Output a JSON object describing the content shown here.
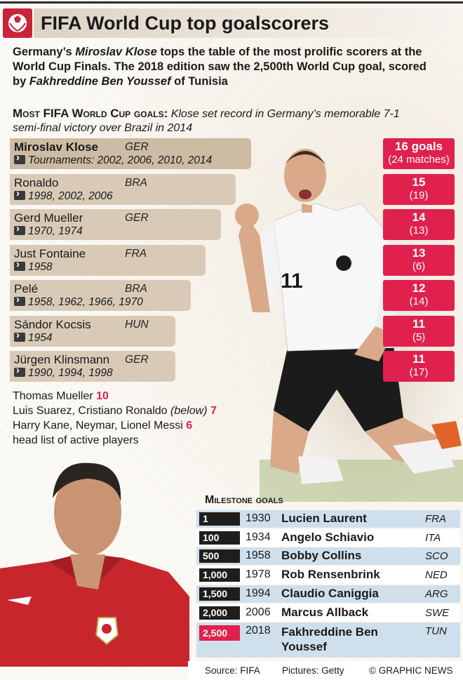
{
  "title": "FIFA World Cup top goalscorers",
  "intro": {
    "t1": "Germany’s ",
    "klose": "Miroslav Klose",
    "t2": " tops the table of the most prolific scorers at the World Cup Finals. The 2018 edition saw the 2,500th World Cup goal, scored by ",
    "byt": "Fakhreddine Ben Youssef",
    "t3": " of Tunisia"
  },
  "section": {
    "heading": "Most FIFA World Cup goals:",
    "subtitle": "Klose set record in Germany’s memorable 7-1 semi-final victory over Brazil in 2014"
  },
  "colors": {
    "accent": "#e0214d",
    "bar": "#d9cab7",
    "milestone_row": "#cfe0ec",
    "milestone_badge": "#1e1e1e"
  },
  "chart_data": {
    "type": "bar",
    "title": "Most FIFA World Cup goals",
    "categories": [
      "Miroslav Klose",
      "Ronaldo",
      "Gerd Mueller",
      "Just Fontaine",
      "Pelé",
      "Sándor Kocsis",
      "Jürgen Klinsmann"
    ],
    "series": [
      {
        "name": "goals",
        "values": [
          16,
          15,
          14,
          13,
          12,
          11,
          11
        ]
      },
      {
        "name": "matches",
        "values": [
          24,
          19,
          13,
          6,
          14,
          5,
          17
        ]
      }
    ],
    "rows": [
      {
        "name": "Miroslav Klose",
        "country": "GER",
        "tournaments": "Tournaments: 2002, 2006, 2010, 2014",
        "goals_label": "16 goals",
        "matches_label": "(24 matches)"
      },
      {
        "name": "Ronaldo",
        "country": "BRA",
        "tournaments": "1998, 2002, 2006",
        "goals_label": "15",
        "matches_label": "(19)"
      },
      {
        "name": "Gerd Mueller",
        "country": "GER",
        "tournaments": "1970, 1974",
        "goals_label": "14",
        "matches_label": "(13)"
      },
      {
        "name": "Just Fontaine",
        "country": "FRA",
        "tournaments": "1958",
        "goals_label": "13",
        "matches_label": "(6)"
      },
      {
        "name": "Pelé",
        "country": "BRA",
        "tournaments": "1958, 1962, 1966, 1970",
        "goals_label": "12",
        "matches_label": "(14)"
      },
      {
        "name": "Sándor Kocsis",
        "country": "HUN",
        "tournaments": "1954",
        "goals_label": "11",
        "matches_label": "(5)"
      },
      {
        "name": "Jürgen Klinsmann",
        "country": "GER",
        "tournaments": "1990, 1994, 1998",
        "goals_label": "11",
        "matches_label": "(17)"
      }
    ]
  },
  "active": {
    "l1_name": "Thomas Mueller ",
    "l1_num": "10",
    "l2_name": "Luis Suarez, Cristiano Ronaldo ",
    "l2_note": "(below)",
    "l2_num": "7",
    "l3_name": "Harry Kane, Neymar, Lionel Messi ",
    "l3_num": "6",
    "l4": "head list of active players"
  },
  "milestones": {
    "title": "Milestone goals",
    "rows": [
      {
        "goal": "1",
        "year": "1930",
        "name": "Lucien Laurent",
        "country": "FRA"
      },
      {
        "goal": "100",
        "year": "1934",
        "name": "Angelo Schiavio",
        "country": "ITA"
      },
      {
        "goal": "500",
        "year": "1958",
        "name": "Bobby Collins",
        "country": "SCO"
      },
      {
        "goal": "1,000",
        "year": "1978",
        "name": "Rob Rensenbrink",
        "country": "NED"
      },
      {
        "goal": "1,500",
        "year": "1994",
        "name": "Claudio Caniggia",
        "country": "ARG"
      },
      {
        "goal": "2,000",
        "year": "2006",
        "name": "Marcus Allback",
        "country": "SWE"
      },
      {
        "goal": "2,500",
        "year": "2018",
        "name": "Fakhreddine Ben Youssef",
        "country": "TUN"
      }
    ]
  },
  "footer": {
    "source": "Source: FIFA",
    "pictures": "Pictures: Getty",
    "credit": "© GRAPHIC NEWS"
  }
}
